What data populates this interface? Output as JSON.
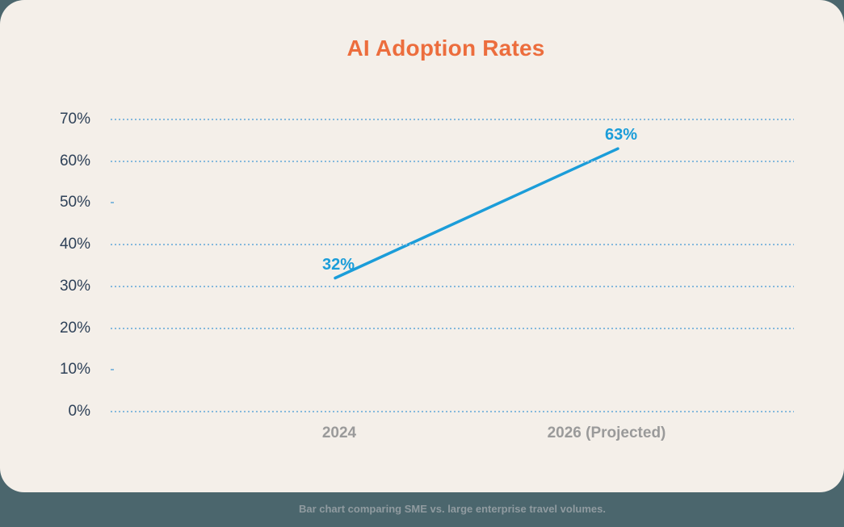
{
  "page": {
    "caption": "Bar chart comparing SME vs. large enterprise travel volumes."
  },
  "chart_data": {
    "type": "line",
    "title": "AI Adoption Rates",
    "categories": [
      "2024",
      "2026 (Projected)"
    ],
    "values": [
      32,
      63
    ],
    "data_labels": [
      "32%",
      "63%"
    ],
    "yticks": [
      "70%",
      "60%",
      "50%",
      "40%",
      "30%",
      "20%",
      "10%",
      "0%"
    ],
    "ylim": [
      0,
      70
    ],
    "grid": "horizontal-dotted",
    "partial_gridlines": [
      "50%",
      "10%"
    ],
    "legend": "none",
    "xlabel": "",
    "ylabel": ""
  },
  "colors": {
    "background_teal": "#4B666D",
    "card_cream": "#F4EFE9",
    "title_orange": "#EC6D3D",
    "line_blue": "#1B9DD9",
    "axis_label_navy": "#2E4158",
    "x_label_gray": "#9A9A9A",
    "gridline_blue": "#85B9DC",
    "caption_gray": "#909BA0"
  }
}
